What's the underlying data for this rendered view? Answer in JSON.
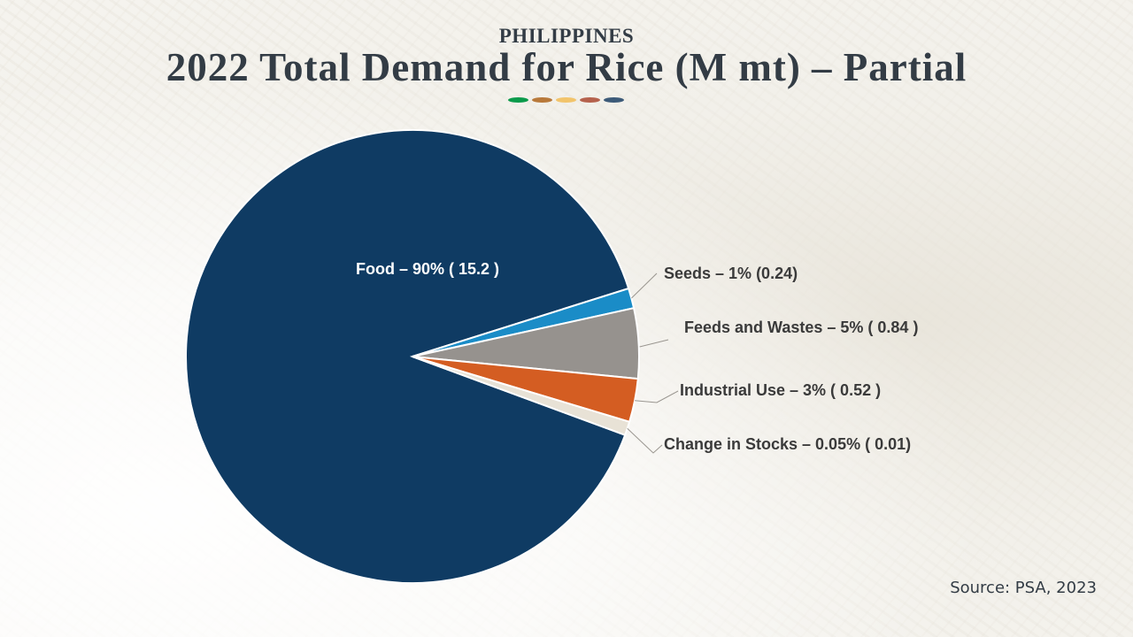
{
  "header": {
    "country": "PHILIPPINES",
    "title": "2022 Total Demand for Rice (M mt) – Partial"
  },
  "decor_colors": [
    "#0a9a4a",
    "#b8793a",
    "#f2c46b",
    "#b5614c",
    "#3c5a78"
  ],
  "source": "Source: PSA, 2023",
  "chart_data": {
    "type": "pie",
    "title": "2022 Total Demand for Rice (M mt) – Partial",
    "slices": [
      {
        "name": "Food",
        "percent": 90,
        "value": 15.2,
        "color": "#0f3b63",
        "label": "Food – 90% ( 15.2 )"
      },
      {
        "name": "Seeds",
        "percent": 1,
        "value": 0.24,
        "color": "#1a8cc7",
        "label": "Seeds – 1% (0.24)"
      },
      {
        "name": "Feeds and Wastes",
        "percent": 5,
        "value": 0.84,
        "color": "#96928e",
        "label": "Feeds and Wastes – 5% ( 0.84 )"
      },
      {
        "name": "Industrial Use",
        "percent": 3,
        "value": 0.52,
        "color": "#d45d22",
        "label": "Industrial Use – 3% ( 0.52 )"
      },
      {
        "name": "Change in Stocks",
        "percent": 0.05,
        "value": 0.01,
        "color": "#e8e2d6",
        "label": "Change in Stocks – 0.05% ( 0.01)"
      }
    ],
    "label_text_color": "#3a3a3a",
    "inner_label_color": "#ffffff"
  }
}
